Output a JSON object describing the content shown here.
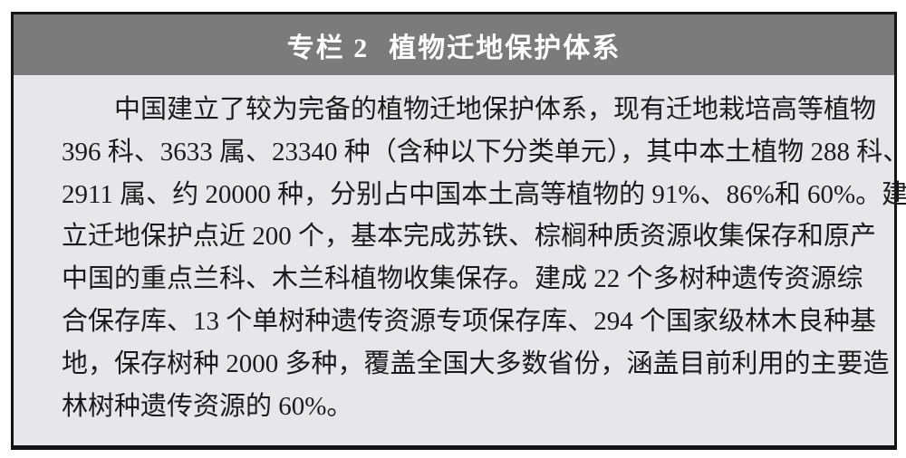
{
  "box": {
    "header": {
      "label": "专栏 2",
      "title": "植物迁地保护体系",
      "background_color": "#7b7b7b",
      "text_color": "#ffffff"
    },
    "body": {
      "background_color": "#e7e7e9",
      "lines": [
        "中国建立了较为完备的植物迁地保护体系，现有迁地栽培高等植物",
        "396 科、3633 属、23340 种（含种以下分类单元），其中本土植物 288 科、",
        "2911 属、约 20000 种，分别占中国本土高等植物的 91%、86%和 60%。建",
        "立迁地保护点近 200 个，基本完成苏铁、棕榈种质资源收集保存和原产",
        "中国的重点兰科、木兰科植物收集保存。建成 22 个多树种遗传资源综",
        "合保存库、13 个单树种遗传资源专项保存库、294 个国家级林木良种基",
        "地，保存树种 2000 多种，覆盖全国大多数省份，涵盖目前利用的主要造",
        "林树种遗传资源的 60%。"
      ]
    },
    "border_color": "#141414"
  }
}
